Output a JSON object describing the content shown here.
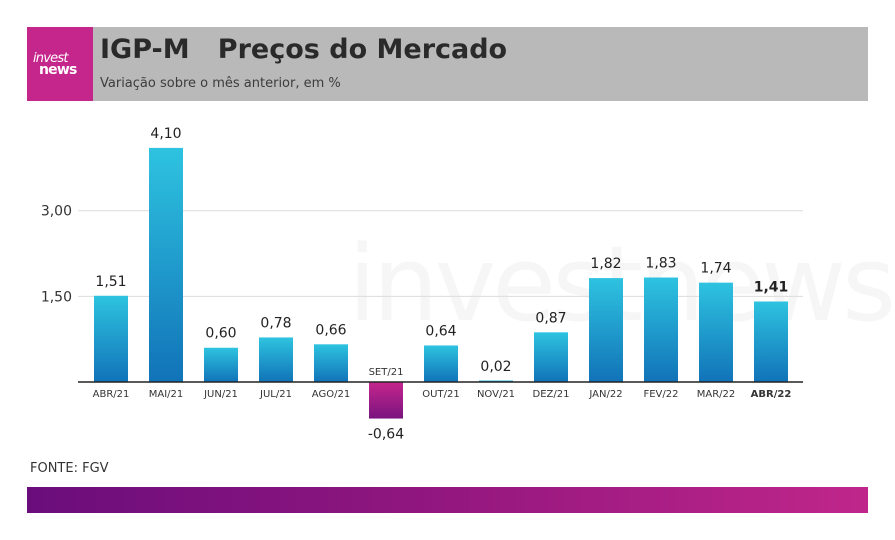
{
  "header": {
    "logo_top": "invest",
    "logo_bottom": "news",
    "title": "IGP-M   Preços do Mercado",
    "subtitle": "Variação sobre o mês anterior, em %"
  },
  "watermark": "investnews",
  "source": "FONTE: FGV",
  "colors": {
    "positive_top": "#2ec3e0",
    "positive_bottom": "#1173b8",
    "negative_top": "#c5268c",
    "negative_bottom": "#7a1480",
    "header_bg": "#b9b9b9",
    "logo_bg": "#c5268c",
    "footer_start": "#6a0d7c",
    "footer_end": "#c0268a"
  },
  "chart_data": {
    "type": "bar",
    "title": "",
    "xlabel": "",
    "ylabel": "",
    "categories": [
      "ABR/21",
      "MAI/21",
      "JUN/21",
      "JUL/21",
      "AGO/21",
      "SET/21",
      "OUT/21",
      "NOV/21",
      "DEZ/21",
      "JAN/22",
      "FEV/22",
      "MAR/22",
      "ABR/22"
    ],
    "values": [
      1.51,
      4.1,
      0.6,
      0.78,
      0.66,
      -0.64,
      0.64,
      0.02,
      0.87,
      1.82,
      1.83,
      1.74,
      1.41
    ],
    "value_labels": [
      "1,51",
      "4,10",
      "0,60",
      "0,78",
      "0,66",
      "-0,64",
      "0,64",
      "0,02",
      "0,87",
      "1,82",
      "1,83",
      "1,74",
      "1,41"
    ],
    "yticks": [
      1.5,
      3.0
    ],
    "ytick_labels": [
      "1,50",
      "3,00"
    ],
    "ylim": [
      -0.64,
      4.1
    ],
    "highlight_category": "ABR/22",
    "grid": true,
    "legend": "none"
  }
}
